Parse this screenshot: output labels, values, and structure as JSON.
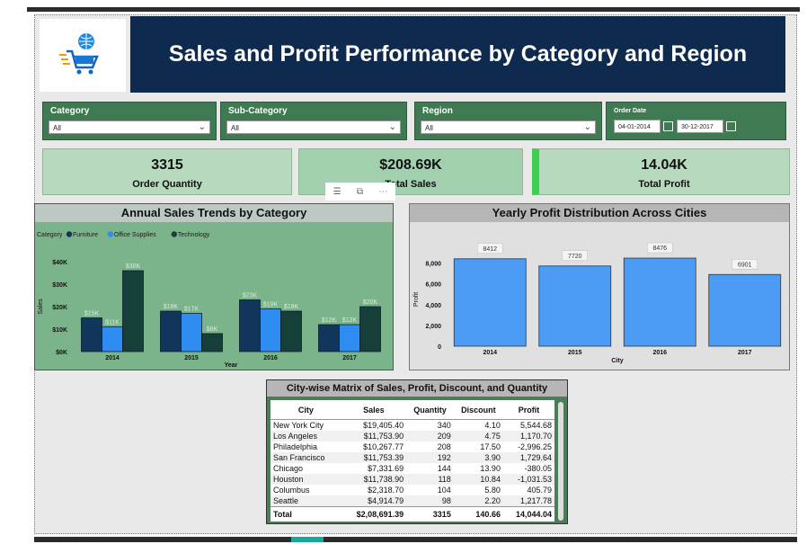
{
  "header": {
    "title": "Sales and Profit Performance by Category and Region"
  },
  "filters": {
    "category": {
      "label": "Category",
      "value": "All"
    },
    "sub_category": {
      "label": "Sub-Category",
      "value": "All"
    },
    "region": {
      "label": "Region",
      "value": "All"
    },
    "order_date": {
      "label": "Order Date",
      "start": "04-01-2014",
      "end": "30-12-2017"
    }
  },
  "kpis": {
    "order_quantity": {
      "value": "3315",
      "label": "Order Quantity"
    },
    "total_sales": {
      "value": "$208.69K",
      "label": "Total Sales"
    },
    "total_profit": {
      "value": "14.04K",
      "label": "Total Profit"
    }
  },
  "visual_header_icons": [
    "filter-icon",
    "focus-mode-icon",
    "more-options-icon"
  ],
  "chart_data": [
    {
      "type": "bar",
      "title": "Annual Sales Trends by Category",
      "legend_title": "Category",
      "legend_position": "top-left",
      "categories": [
        "2014",
        "2015",
        "2016",
        "2017"
      ],
      "series": [
        {
          "name": "Furniture",
          "color": "#12355b",
          "values": [
            15,
            18,
            23,
            12
          ],
          "labels": [
            "$15K",
            "$18K",
            "$23K",
            "$12K"
          ]
        },
        {
          "name": "Office Supplies",
          "color": "#2f8cf0",
          "values": [
            11,
            17,
            19,
            12
          ],
          "labels": [
            "$11K",
            "$17K",
            "$19K",
            "$12K"
          ]
        },
        {
          "name": "Technology",
          "color": "#173f3a",
          "values": [
            36,
            8,
            18,
            20
          ],
          "labels": [
            "$36K",
            "$8K",
            "$18K",
            "$20K"
          ]
        }
      ],
      "xlabel": "Year",
      "ylabel": "Sales",
      "yticks": [
        "$0K",
        "$10K",
        "$20K",
        "$30K",
        "$40K"
      ],
      "ylim": [
        0,
        40
      ]
    },
    {
      "type": "bar",
      "title": "Yearly Profit Distribution Across Cities",
      "categories": [
        "2014",
        "2015",
        "2016",
        "2017"
      ],
      "values": [
        8412,
        7720,
        8476,
        6901
      ],
      "color": "#4c9bf5",
      "xlabel": "City",
      "ylabel": "Profit",
      "yticks": [
        "0",
        "2,000",
        "4,000",
        "6,000",
        "8,000"
      ],
      "ylim": [
        0,
        9000
      ]
    }
  ],
  "matrix": {
    "title": "City-wise Matrix of Sales, Profit, Discount, and Quantity",
    "columns": [
      "City",
      "Sales",
      "Quantity",
      "Discount",
      "Profit"
    ],
    "rows": [
      [
        "New York City",
        "$19,405.40",
        "340",
        "4.10",
        "5,544.68"
      ],
      [
        "Los Angeles",
        "$11,753.90",
        "209",
        "4.75",
        "1,170.70"
      ],
      [
        "Philadelphia",
        "$10,267.77",
        "208",
        "17.50",
        "-2,996.25"
      ],
      [
        "San Francisco",
        "$11,753.39",
        "192",
        "3.90",
        "1,729.64"
      ],
      [
        "Chicago",
        "$7,331.69",
        "144",
        "13.90",
        "-380.05"
      ],
      [
        "Houston",
        "$11,738.90",
        "118",
        "10.84",
        "-1,031.53"
      ],
      [
        "Columbus",
        "$2,318.70",
        "104",
        "5.80",
        "405.79"
      ],
      [
        "Seattle",
        "$4,914.79",
        "98",
        "2.20",
        "1,217.78"
      ]
    ],
    "total": [
      "Total",
      "$2,08,691.39",
      "3315",
      "140.66",
      "14,044.04"
    ]
  }
}
